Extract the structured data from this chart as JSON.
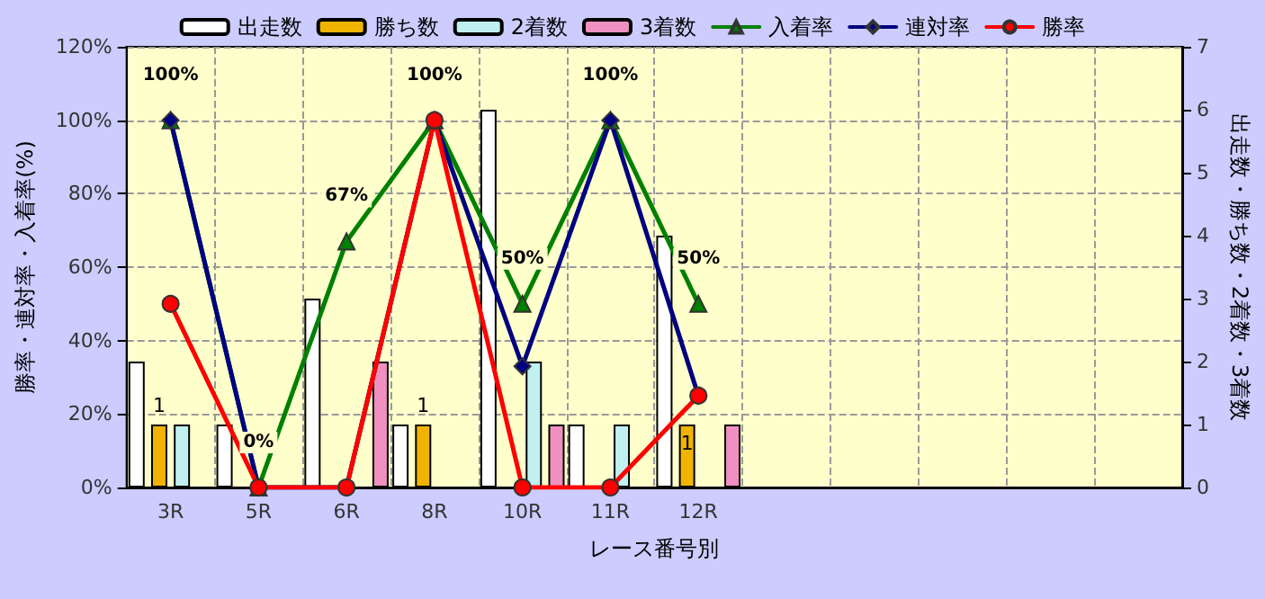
{
  "chart_data": {
    "type": "bar",
    "xlabel": "レース番号別",
    "ylabel": "勝率・連対率・入着率(%)",
    "y2label": "出走数・勝ち数・2着数・3着数",
    "categories": [
      "3R",
      "5R",
      "6R",
      "8R",
      "10R",
      "11R",
      "12R",
      null,
      null,
      null,
      null,
      null
    ],
    "series": [
      {
        "name": "出走数",
        "axis": "y2",
        "color": "#ffffff",
        "values": [
          2,
          1,
          3,
          1,
          6,
          1,
          4,
          null,
          null,
          null,
          null,
          null
        ]
      },
      {
        "name": "勝ち数",
        "axis": "y2",
        "color": "#f0b400",
        "values": [
          1,
          0,
          0,
          1,
          0,
          0,
          1,
          null,
          null,
          null,
          null,
          null
        ],
        "value_labels": [
          "1",
          null,
          null,
          "1",
          null,
          null,
          "1",
          null,
          null,
          null,
          null,
          null
        ]
      },
      {
        "name": "2着数",
        "axis": "y2",
        "color": "#c0f0f0",
        "values": [
          1,
          0,
          0,
          0,
          2,
          1,
          0,
          null,
          null,
          null,
          null,
          null
        ]
      },
      {
        "name": "3着数",
        "axis": "y2",
        "color": "#f090c0",
        "values": [
          0,
          0,
          2,
          0,
          1,
          0,
          1,
          null,
          null,
          null,
          null,
          null
        ]
      },
      {
        "name": "入着率",
        "type": "line",
        "color": "#008000",
        "marker": "triangle",
        "values": [
          100,
          0,
          67,
          100,
          50,
          100,
          50,
          null,
          null,
          null,
          null,
          null
        ],
        "value_labels": [
          "100%",
          "0%",
          "67%",
          "100%",
          "50%",
          "100%",
          "50%",
          null,
          null,
          null,
          null,
          null
        ]
      },
      {
        "name": "連対率",
        "type": "line",
        "color": "#000080",
        "marker": "diamond",
        "values": [
          100,
          0,
          0,
          100,
          33,
          100,
          25,
          null,
          null,
          null,
          null,
          null
        ]
      },
      {
        "name": "勝率",
        "type": "line",
        "color": "#ff0000",
        "marker": "circle",
        "values": [
          50,
          0,
          0,
          100,
          0,
          0,
          25,
          null,
          null,
          null,
          null,
          null
        ]
      }
    ],
    "ylim": [
      0,
      120
    ],
    "yticks": [
      {
        "value": 0,
        "label": "0%"
      },
      {
        "value": 20,
        "label": "20%"
      },
      {
        "value": 40,
        "label": "40%"
      },
      {
        "value": 60,
        "label": "60%"
      },
      {
        "value": 80,
        "label": "80%"
      },
      {
        "value": 100,
        "label": "100%"
      },
      {
        "value": 120,
        "label": "120%"
      }
    ],
    "y2lim": [
      0,
      7
    ],
    "y2ticks": [
      0,
      1,
      2,
      3,
      4,
      5,
      6,
      7
    ],
    "grid": true,
    "legend": "top",
    "line_style": "solid"
  }
}
